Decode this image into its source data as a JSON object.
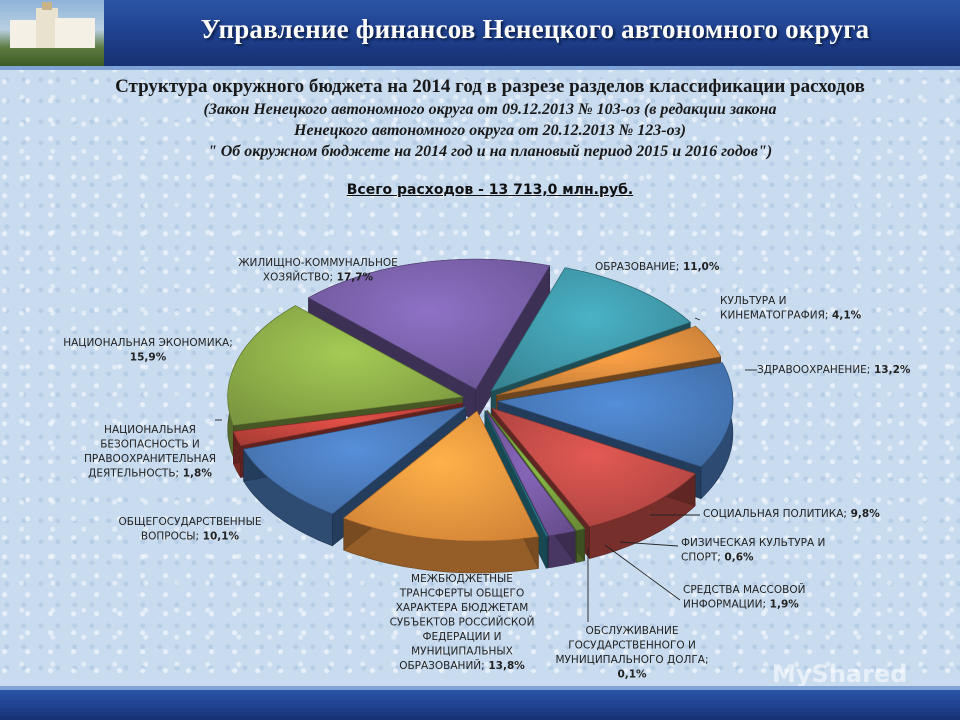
{
  "header": {
    "title": "Управление финансов Ненецкого автономного округа"
  },
  "slide": {
    "title": "Структура  окружного бюджета на 2014 год в разрезе разделов классификации расходов",
    "subtitle_lines": [
      "(Закон Ненецкого автономного округа от 09.12.2013 № 103-оз (в редакции закона",
      "Ненецкого автономного округа от 20.12.2013 № 123-оз)",
      "\" Об окружном бюджете на 2014 год и на плановый период 2015 и 2016 годов\")"
    ],
    "total": "Всего расходов - 13 713,0 млн.руб."
  },
  "watermark": "MyShared",
  "chart_data": {
    "type": "pie",
    "title": "Всего расходов - 13 713,0 млн.руб.",
    "unit": "%",
    "slices": [
      {
        "label": "ОБРАЗОВАНИЕ",
        "value": 11.0,
        "display": "11,0%",
        "color": "#3f97a8"
      },
      {
        "label": "КУЛЬТУРА И КИНЕМАТОГРАФИЯ",
        "value": 4.1,
        "display": "4,1%",
        "color": "#d88a3c"
      },
      {
        "label": "ЗДРАВООХРАНЕНИЕ",
        "value": 13.2,
        "display": "13,2%",
        "color": "#4778b8"
      },
      {
        "label": "СОЦИАЛЬНАЯ ПОЛИТИКА",
        "value": 9.8,
        "display": "9,8%",
        "color": "#c04b47"
      },
      {
        "label": "ФИЗИЧЕСКАЯ КУЛЬТУРА И СПОРТ",
        "value": 0.6,
        "display": "0,6%",
        "color": "#7aa03f"
      },
      {
        "label": "СРЕДСТВА МАССОВОЙ ИНФОРМАЦИИ",
        "value": 1.9,
        "display": "1,9%",
        "color": "#7558a0"
      },
      {
        "label": "ОБСЛУЖИВАНИЕ ГОСУДАРСТВЕННОГО И МУНИЦИПАЛЬНОГО ДОЛГА",
        "value": 0.1,
        "display": "0,1%",
        "color": "#2f8fa3"
      },
      {
        "label": "МЕЖБЮДЖЕТНЫЕ ТРАНСФЕРТЫ ОБЩЕГО ХАРАКТЕРА БЮДЖЕТАМ СУБЪЕКТОВ РОССИЙСКОЙ ФЕДЕРАЦИИ И МУНИЦИПАЛЬНЫХ ОБРАЗОВАНИЙ",
        "value": 13.8,
        "display": "13,8%",
        "color": "#f0963f"
      },
      {
        "label": "ОБЩЕГОСУДАРСТВЕННЫЕ ВОПРОСЫ",
        "value": 10.1,
        "display": "10,1%",
        "color": "#4a79b8"
      },
      {
        "label": "НАЦИОНАЛЬНАЯ БЕЗОПАСНОСТЬ И ПРАВООХРАНИТЕЛЬНАЯ ДЕЯТЕЛЬНОСТЬ",
        "value": 1.8,
        "display": "1,8%",
        "color": "#c0443c"
      },
      {
        "label": "НАЦИОНАЛЬНАЯ ЭКОНОМИКА",
        "value": 15.9,
        "display": "15,9%",
        "color": "#8cac48"
      },
      {
        "label": "ЖИЛИЩНО-КОММУНАЛЬНОЕ ХОЗЯЙСТВО",
        "value": 17.7,
        "display": "17,7%",
        "color": "#7860a8"
      }
    ]
  }
}
